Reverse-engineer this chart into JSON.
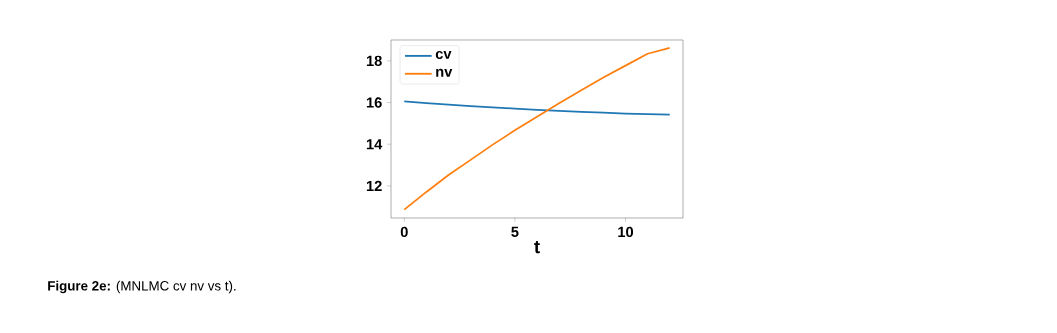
{
  "chart_data": {
    "type": "line",
    "xlabel": "t",
    "x": [
      0,
      1,
      2,
      3,
      4,
      5,
      6,
      7,
      8,
      9,
      10,
      11,
      12
    ],
    "series": [
      {
        "name": "cv",
        "color": "#1f77b4",
        "values": [
          16.05,
          15.97,
          15.9,
          15.83,
          15.77,
          15.71,
          15.65,
          15.6,
          15.55,
          15.51,
          15.47,
          15.44,
          15.42
        ]
      },
      {
        "name": "nv",
        "color": "#ff7f0e",
        "values": [
          10.86,
          11.71,
          12.52,
          13.25,
          13.98,
          14.67,
          15.32,
          15.97,
          16.59,
          17.2,
          17.77,
          18.34,
          18.62
        ]
      }
    ],
    "xlim": [
      -0.6,
      12.6
    ],
    "ylim": [
      10.46,
      19.0
    ],
    "xticks": [
      0,
      5,
      10
    ],
    "yticks": [
      12,
      14,
      16,
      18
    ],
    "grid": false,
    "legend": "top left",
    "line_style": "solid",
    "marker": "none",
    "annotations": [
      "**Figure 2e:** (MNLMC cv nv vs t)."
    ]
  }
}
